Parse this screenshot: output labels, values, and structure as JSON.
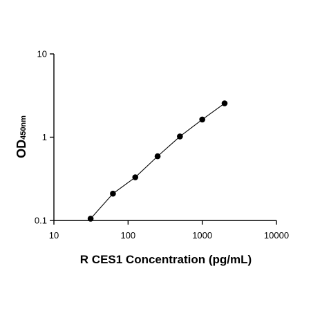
{
  "chart_data": {
    "type": "scatter",
    "xlabel": "R CES1 Concentration (pg/mL)",
    "ylabel": "OD",
    "ylabel_subscript": "450nm",
    "xscale": "log",
    "yscale": "log",
    "xlim": [
      10,
      10000
    ],
    "ylim": [
      0.1,
      10
    ],
    "xticks": [
      10,
      100,
      1000,
      10000
    ],
    "xtick_labels": [
      "10",
      "100",
      "1000",
      "10000"
    ],
    "yticks": [
      0.1,
      1,
      10
    ],
    "ytick_labels": [
      "0.1",
      "1",
      "10"
    ],
    "grid": false,
    "legend": "none",
    "fit_line": true,
    "colors": {
      "points": "#000000",
      "line": "#000000"
    },
    "series": [
      {
        "x": [
          31.25,
          62.5,
          125,
          250,
          500,
          1000,
          2000
        ],
        "y": [
          0.105,
          0.21,
          0.33,
          0.59,
          1.02,
          1.63,
          2.55
        ]
      }
    ]
  }
}
